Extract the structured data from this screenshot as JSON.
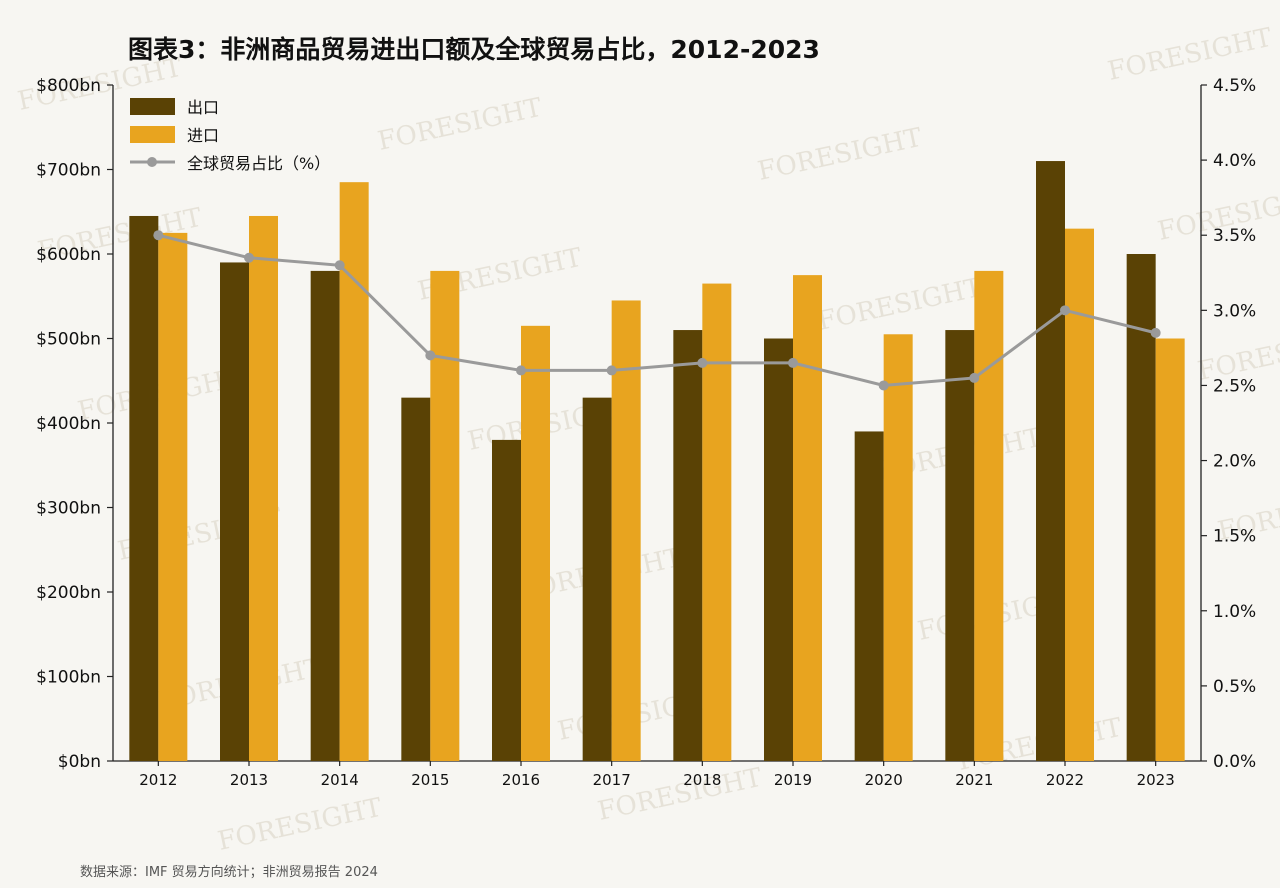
{
  "chart_data": {
    "type": "bar",
    "title": "图表3：非洲商品贸易进出口额及全球贸易占比，2012-2023",
    "categories": [
      "2012",
      "2013",
      "2014",
      "2015",
      "2016",
      "2017",
      "2018",
      "2019",
      "2020",
      "2021",
      "2022",
      "2023"
    ],
    "series": [
      {
        "name": "出口",
        "type": "bar",
        "axis": "left",
        "color": "#5a4205",
        "values": [
          645,
          590,
          580,
          430,
          380,
          430,
          510,
          500,
          390,
          510,
          710,
          600
        ]
      },
      {
        "name": "进口",
        "type": "bar",
        "axis": "left",
        "color": "#e8a41f",
        "values": [
          625,
          645,
          685,
          580,
          515,
          545,
          565,
          575,
          505,
          580,
          630,
          500
        ]
      },
      {
        "name": "全球贸易占比（%）",
        "type": "line",
        "axis": "right",
        "color": "#9a9a9a",
        "values": [
          3.5,
          3.35,
          3.3,
          2.7,
          2.6,
          2.6,
          2.65,
          2.65,
          2.5,
          2.55,
          3.0,
          2.85
        ]
      }
    ],
    "y_left": {
      "ylim": [
        0,
        800
      ],
      "ticks": [
        0,
        100,
        200,
        300,
        400,
        500,
        600,
        700,
        800
      ],
      "tick_labels": [
        "$0bn",
        "$100bn",
        "$200bn",
        "$300bn",
        "$400bn",
        "$500bn",
        "$600bn",
        "$700bn",
        "$800bn"
      ]
    },
    "y_right": {
      "ylim": [
        0,
        4.5
      ],
      "ticks": [
        0,
        0.5,
        1.0,
        1.5,
        2.0,
        2.5,
        3.0,
        3.5,
        4.0,
        4.5
      ],
      "tick_labels": [
        "0.0%",
        "0.5%",
        "1.0%",
        "1.5%",
        "2.0%",
        "2.5%",
        "3.0%",
        "3.5%",
        "4.0%",
        "4.5%"
      ]
    },
    "legend_position": "top-left",
    "grid": false
  },
  "source_note": "数据来源：IMF 贸易方向统计；非洲贸易报告 2024",
  "watermark": "FORESIGHT"
}
